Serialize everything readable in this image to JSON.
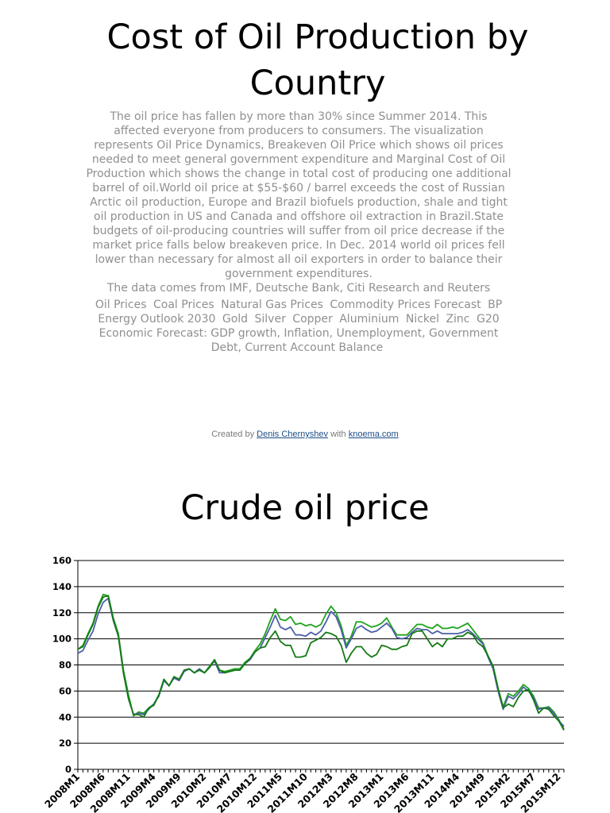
{
  "header": {
    "title": "Cost of Oil Production by Country"
  },
  "description": {
    "paragraph1": "The oil price has fallen by more than 30% since Summer 2014. This affected everyone from producers to consumers. The visualization represents Oil Price Dynamics, Breakeven Oil Price which shows oil prices needed to meet general government expenditure and Marginal Cost of Oil Production which shows the change in total cost of producing one additional barrel of oil.World oil price at $55-$60 / barrel exceeds the cost of Russian Arctic oil production, Europe and Brazil biofuels production, shale and tight oil production in US and Canada and offshore oil extraction in Brazil.State budgets of oil-producing countries will suffer from oil price decrease if the market price falls below breakeven price. In Dec. 2014 world oil prices fell lower than necessary for almost all oil exporters in order to balance their government expenditures.",
    "paragraph2": "The data comes from IMF, Deutsche Bank, Citi Research and Reuters",
    "links": {
      "oil_prices": "Oil Prices",
      "coal_prices": "Coal Prices",
      "natural_gas_prices": "Natural Gas Prices",
      "commodity_prices_forecast": "Commodity Prices Forecast",
      "bp_energy_outlook_2030": "BP Energy Outlook 2030",
      "gold": "Gold",
      "silver": "Silver",
      "copper": "Copper",
      "aluminium": "Aluminium",
      "nickel": "Nickel",
      "zinc": "Zinc",
      "g20_forecast": "G20 Economic Forecast: GDP growth, Inflation, Unemployment, Government Debt, Current Account Balance"
    }
  },
  "credit": {
    "prefix": "Created by",
    "author": "Denis Chernyshev",
    "middle": "with",
    "site": "knoema.com"
  },
  "chart_data": {
    "type": "line",
    "title": "Crude oil price",
    "xlabel": "",
    "ylabel": "",
    "ylim": [
      0,
      160
    ],
    "yticks": [
      0,
      20,
      40,
      60,
      80,
      100,
      120,
      140,
      160
    ],
    "grid": true,
    "legend": "none",
    "x": [
      "2008M1",
      "2008M2",
      "2008M3",
      "2008M4",
      "2008M5",
      "2008M6",
      "2008M7",
      "2008M8",
      "2008M9",
      "2008M10",
      "2008M11",
      "2008M12",
      "2009M1",
      "2009M2",
      "2009M3",
      "2009M4",
      "2009M5",
      "2009M6",
      "2009M7",
      "2009M8",
      "2009M9",
      "2009M10",
      "2009M11",
      "2009M12",
      "2010M1",
      "2010M2",
      "2010M3",
      "2010M4",
      "2010M5",
      "2010M6",
      "2010M7",
      "2010M8",
      "2010M9",
      "2010M10",
      "2010M11",
      "2010M12",
      "2011M1",
      "2011M2",
      "2011M3",
      "2011M4",
      "2011M5",
      "2011M6",
      "2011M7",
      "2011M8",
      "2011M9",
      "2011M10",
      "2011M11",
      "2011M12",
      "2012M1",
      "2012M2",
      "2012M3",
      "2012M4",
      "2012M5",
      "2012M6",
      "2012M7",
      "2012M8",
      "2012M9",
      "2012M10",
      "2012M11",
      "2012M12",
      "2013M1",
      "2013M2",
      "2013M3",
      "2013M4",
      "2013M5",
      "2013M6",
      "2013M7",
      "2013M8",
      "2013M9",
      "2013M10",
      "2013M11",
      "2013M12",
      "2014M1",
      "2014M2",
      "2014M3",
      "2014M4",
      "2014M5",
      "2014M6",
      "2014M7",
      "2014M8",
      "2014M9",
      "2014M10",
      "2014M11",
      "2014M12",
      "2015M1",
      "2015M2",
      "2015M3",
      "2015M4",
      "2015M5",
      "2015M6",
      "2015M7",
      "2015M8",
      "2015M9",
      "2015M10",
      "2015M11",
      "2015M12",
      "2016M1"
    ],
    "xtick_labels": [
      "2008M1",
      "2008M6",
      "2008M11",
      "2009M4",
      "2009M9",
      "2010M2",
      "2010M7",
      "2010M12",
      "2011M5",
      "2011M10",
      "2012M3",
      "2012M8",
      "2013M1",
      "2013M6",
      "2013M11",
      "2014M4",
      "2014M9",
      "2015M2",
      "2015M7",
      "2015M12"
    ],
    "series": [
      {
        "color": "#1fa31f",
        "values": [
          92,
          95,
          104,
          112,
          125,
          134,
          133,
          116,
          104,
          76,
          57,
          41,
          44,
          43,
          47,
          50,
          57,
          69,
          64,
          71,
          68,
          76,
          77,
          74,
          77,
          74,
          79,
          84,
          76,
          75,
          76,
          77,
          77,
          82,
          85,
          91,
          96,
          104,
          114,
          123,
          115,
          114,
          117,
          111,
          112,
          110,
          111,
          109,
          111,
          119,
          125,
          120,
          110,
          95,
          102,
          113,
          113,
          111,
          109,
          110,
          112,
          116,
          109,
          103,
          103,
          103,
          107,
          111,
          111,
          109,
          108,
          111,
          108,
          108,
          109,
          108,
          110,
          112,
          107,
          102,
          97,
          87,
          79,
          62,
          48,
          58,
          56,
          60,
          65,
          62,
          56,
          47,
          47,
          48,
          44,
          38,
          31
        ]
      },
      {
        "color": "#4c5fa8",
        "values": [
          89,
          91,
          99,
          106,
          119,
          128,
          131,
          114,
          102,
          74,
          54,
          42,
          43,
          42,
          46,
          50,
          56,
          68,
          64,
          70,
          68,
          75,
          77,
          74,
          77,
          74,
          78,
          83,
          74,
          74,
          75,
          76,
          76,
          81,
          84,
          90,
          93,
          101,
          109,
          118,
          109,
          107,
          109,
          103,
          103,
          102,
          105,
          103,
          106,
          113,
          121,
          117,
          107,
          93,
          100,
          108,
          110,
          107,
          105,
          106,
          109,
          112,
          108,
          101,
          100,
          101,
          105,
          108,
          107,
          107,
          104,
          106,
          104,
          104,
          104,
          104,
          105,
          107,
          104,
          100,
          96,
          86,
          77,
          60,
          46,
          56,
          54,
          58,
          63,
          60,
          55,
          46,
          47,
          47,
          43,
          37,
          33
        ]
      },
      {
        "color": "#157a15",
        "values": [
          92,
          94,
          103,
          111,
          124,
          132,
          133,
          115,
          102,
          74,
          54,
          42,
          42,
          40,
          47,
          49,
          57,
          69,
          64,
          71,
          69,
          76,
          77,
          74,
          76,
          74,
          78,
          84,
          76,
          74,
          75,
          76,
          76,
          81,
          85,
          90,
          93,
          94,
          101,
          106,
          98,
          95,
          95,
          86,
          86,
          87,
          97,
          99,
          101,
          105,
          104,
          102,
          95,
          82,
          89,
          94,
          94,
          89,
          86,
          88,
          95,
          94,
          92,
          92,
          94,
          95,
          104,
          106,
          106,
          100,
          94,
          97,
          94,
          100,
          100,
          102,
          102,
          105,
          103,
          97,
          94,
          87,
          79,
          62,
          47,
          50,
          48,
          55,
          60,
          61,
          53,
          43,
          47,
          46,
          41,
          37,
          30
        ]
      }
    ]
  }
}
